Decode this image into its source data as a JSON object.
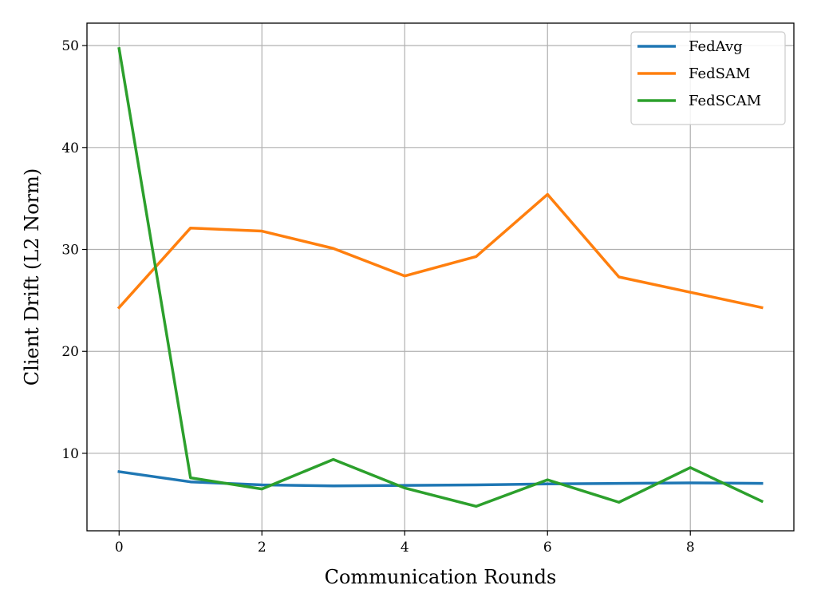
{
  "chart_data": {
    "type": "line",
    "title": "",
    "xlabel": "Communication Rounds",
    "ylabel": "Client Drift (L2 Norm)",
    "x": [
      0,
      1,
      2,
      3,
      4,
      5,
      6,
      7,
      8,
      9
    ],
    "xlim": [
      -0.45,
      9.45
    ],
    "ylim": [
      2.4,
      52.2
    ],
    "xticks": [
      0,
      2,
      4,
      6,
      8
    ],
    "yticks": [
      10,
      20,
      30,
      40,
      50
    ],
    "grid": true,
    "legend_position": "top-right",
    "series": [
      {
        "name": "FedAvg",
        "color": "#1f77b4",
        "values": [
          8.2,
          7.2,
          6.9,
          6.8,
          6.85,
          6.9,
          7.0,
          7.05,
          7.1,
          7.05
        ]
      },
      {
        "name": "FedSAM",
        "color": "#ff7f0e",
        "values": [
          24.3,
          32.1,
          31.8,
          30.1,
          27.4,
          29.3,
          35.4,
          27.3,
          25.8,
          24.3
        ]
      },
      {
        "name": "FedSCAM",
        "color": "#2ca02c",
        "values": [
          49.7,
          7.6,
          6.5,
          9.4,
          6.6,
          4.8,
          7.4,
          5.2,
          8.6,
          5.3
        ]
      }
    ]
  }
}
